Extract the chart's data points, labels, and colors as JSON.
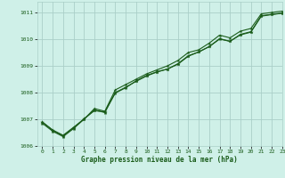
{
  "title": "Graphe pression niveau de la mer (hPa)",
  "background_color": "#cff0e8",
  "grid_color": "#aacfc8",
  "line_color": "#1a5c1a",
  "xlim": [
    -0.5,
    23
  ],
  "ylim": [
    1006.0,
    1011.4
  ],
  "yticks": [
    1006,
    1007,
    1008,
    1009,
    1010,
    1011
  ],
  "xticks": [
    0,
    1,
    2,
    3,
    4,
    5,
    6,
    7,
    8,
    9,
    10,
    11,
    12,
    13,
    14,
    15,
    16,
    17,
    18,
    19,
    20,
    21,
    22,
    23
  ],
  "series1": [
    1006.9,
    1006.6,
    1006.4,
    1006.7,
    1007.0,
    1007.4,
    1007.3,
    1008.1,
    1008.3,
    1008.5,
    1008.7,
    1008.85,
    1009.0,
    1009.2,
    1009.5,
    1009.6,
    1009.85,
    1010.15,
    1010.05,
    1010.3,
    1010.4,
    1010.95,
    1011.0,
    1011.05
  ],
  "series2": [
    1006.85,
    1006.55,
    1006.35,
    1006.65,
    1007.0,
    1007.35,
    1007.25,
    1008.0,
    1008.2,
    1008.42,
    1008.62,
    1008.77,
    1008.88,
    1009.08,
    1009.38,
    1009.52,
    1009.72,
    1010.02,
    1009.92,
    1010.18,
    1010.28,
    1010.88,
    1010.93,
    1010.98
  ],
  "series3": [
    1006.9,
    1006.58,
    1006.38,
    1006.68,
    1007.02,
    1007.32,
    1007.28,
    1007.98,
    1008.18,
    1008.44,
    1008.64,
    1008.78,
    1008.88,
    1009.06,
    1009.36,
    1009.52,
    1009.72,
    1010.0,
    1009.92,
    1010.16,
    1010.26,
    1010.86,
    1010.92,
    1010.97
  ]
}
